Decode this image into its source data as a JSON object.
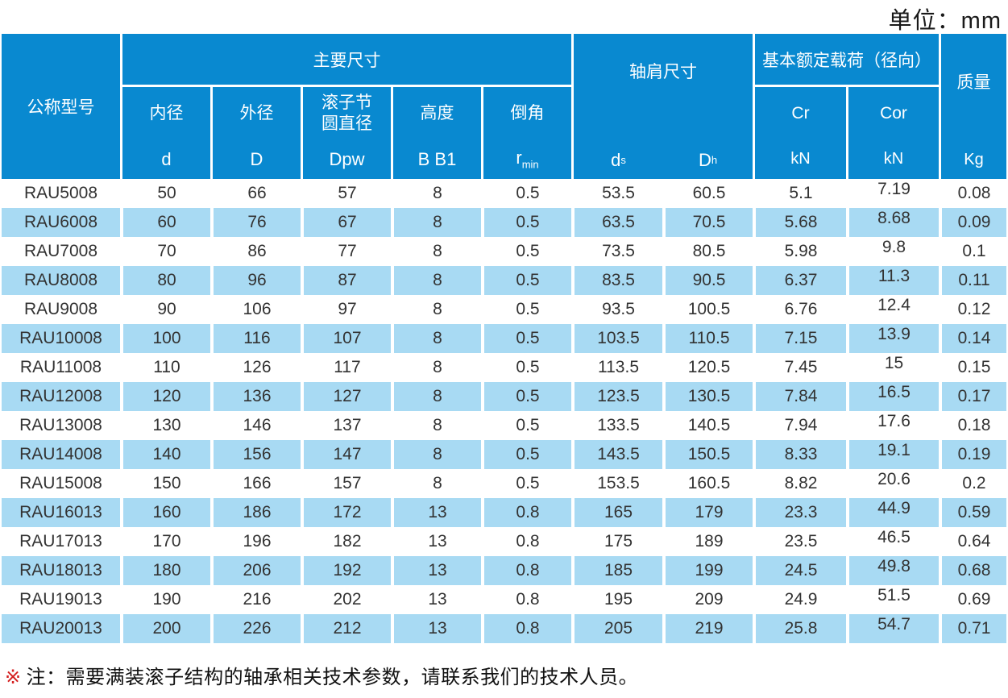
{
  "unit_label": "单位：mm",
  "colors": {
    "header_blue": "#0989d0",
    "row_light_blue": "#a8daf3",
    "body_text": "#333333",
    "note_marker_red": "#d42020"
  },
  "header": {
    "model": "公称型号",
    "main_dims": "主要尺寸",
    "shoulder": "轴肩尺寸",
    "load": "基本额定载荷（径向）",
    "mass": "质量",
    "sub": {
      "bore": {
        "label": "内径",
        "sym": "d"
      },
      "outer": {
        "label": "外径",
        "sym": "D"
      },
      "pitch": {
        "label1": "滚子节",
        "label2": "圆直径",
        "sym": "Dpw"
      },
      "height": {
        "label": "高度",
        "sym": "B B1"
      },
      "chamfer": {
        "label": "倒角",
        "sym": "r",
        "sym_sub": "min"
      },
      "ds": {
        "sym": "d",
        "sub": "s"
      },
      "dh": {
        "sym": "D",
        "sub": "h"
      },
      "cr": {
        "label": "Cr",
        "unit": "kN"
      },
      "cor": {
        "label": "Cor",
        "unit": "kN"
      },
      "kg": "Kg"
    }
  },
  "table": {
    "columns_order": [
      "model",
      "d",
      "D",
      "Dpw",
      "B",
      "r",
      "ds",
      "Dh",
      "Cr",
      "Cor",
      "Kg"
    ],
    "rows": [
      {
        "model": "RAU5008",
        "d": "50",
        "D": "66",
        "Dpw": "57",
        "B": "8",
        "r": "0.5",
        "ds": "53.5",
        "Dh": "60.5",
        "Cr": "5.1",
        "Cor": "7.19",
        "Kg": "0.08"
      },
      {
        "model": "RAU6008",
        "d": "60",
        "D": "76",
        "Dpw": "67",
        "B": "8",
        "r": "0.5",
        "ds": "63.5",
        "Dh": "70.5",
        "Cr": "5.68",
        "Cor": "8.68",
        "Kg": "0.09"
      },
      {
        "model": "RAU7008",
        "d": "70",
        "D": "86",
        "Dpw": "77",
        "B": "8",
        "r": "0.5",
        "ds": "73.5",
        "Dh": "80.5",
        "Cr": "5.98",
        "Cor": "9.8",
        "Kg": "0.1"
      },
      {
        "model": "RAU8008",
        "d": "80",
        "D": "96",
        "Dpw": "87",
        "B": "8",
        "r": "0.5",
        "ds": "83.5",
        "Dh": "90.5",
        "Cr": "6.37",
        "Cor": "11.3",
        "Kg": "0.11"
      },
      {
        "model": "RAU9008",
        "d": "90",
        "D": "106",
        "Dpw": "97",
        "B": "8",
        "r": "0.5",
        "ds": "93.5",
        "Dh": "100.5",
        "Cr": "6.76",
        "Cor": "12.4",
        "Kg": "0.12"
      },
      {
        "model": "RAU10008",
        "d": "100",
        "D": "116",
        "Dpw": "107",
        "B": "8",
        "r": "0.5",
        "ds": "103.5",
        "Dh": "110.5",
        "Cr": "7.15",
        "Cor": "13.9",
        "Kg": "0.14"
      },
      {
        "model": "RAU11008",
        "d": "110",
        "D": "126",
        "Dpw": "117",
        "B": "8",
        "r": "0.5",
        "ds": "113.5",
        "Dh": "120.5",
        "Cr": "7.45",
        "Cor": "15",
        "Kg": "0.15"
      },
      {
        "model": "RAU12008",
        "d": "120",
        "D": "136",
        "Dpw": "127",
        "B": "8",
        "r": "0.5",
        "ds": "123.5",
        "Dh": "130.5",
        "Cr": "7.84",
        "Cor": "16.5",
        "Kg": "0.17"
      },
      {
        "model": "RAU13008",
        "d": "130",
        "D": "146",
        "Dpw": "137",
        "B": "8",
        "r": "0.5",
        "ds": "133.5",
        "Dh": "140.5",
        "Cr": "7.94",
        "Cor": "17.6",
        "Kg": "0.18"
      },
      {
        "model": "RAU14008",
        "d": "140",
        "D": "156",
        "Dpw": "147",
        "B": "8",
        "r": "0.5",
        "ds": "143.5",
        "Dh": "150.5",
        "Cr": "8.33",
        "Cor": "19.1",
        "Kg": "0.19"
      },
      {
        "model": "RAU15008",
        "d": "150",
        "D": "166",
        "Dpw": "157",
        "B": "8",
        "r": "0.5",
        "ds": "153.5",
        "Dh": "160.5",
        "Cr": "8.82",
        "Cor": "20.6",
        "Kg": "0.2"
      },
      {
        "model": "RAU16013",
        "d": "160",
        "D": "186",
        "Dpw": "172",
        "B": "13",
        "r": "0.8",
        "ds": "165",
        "Dh": "179",
        "Cr": "23.3",
        "Cor": "44.9",
        "Kg": "0.59"
      },
      {
        "model": "RAU17013",
        "d": "170",
        "D": "196",
        "Dpw": "182",
        "B": "13",
        "r": "0.8",
        "ds": "175",
        "Dh": "189",
        "Cr": "23.5",
        "Cor": "46.5",
        "Kg": "0.64"
      },
      {
        "model": "RAU18013",
        "d": "180",
        "D": "206",
        "Dpw": "192",
        "B": "13",
        "r": "0.8",
        "ds": "185",
        "Dh": "199",
        "Cr": "24.5",
        "Cor": "49.8",
        "Kg": "0.68"
      },
      {
        "model": "RAU19013",
        "d": "190",
        "D": "216",
        "Dpw": "202",
        "B": "13",
        "r": "0.8",
        "ds": "195",
        "Dh": "209",
        "Cr": "24.9",
        "Cor": "51.5",
        "Kg": "0.69"
      },
      {
        "model": "RAU20013",
        "d": "200",
        "D": "226",
        "Dpw": "212",
        "B": "13",
        "r": "0.8",
        "ds": "205",
        "Dh": "219",
        "Cr": "25.8",
        "Cor": "54.7",
        "Kg": "0.71"
      }
    ]
  },
  "note": {
    "marker": "※",
    "text": "注：需要满装滚子结构的轴承相关技术参数，请联系我们的技术人员。"
  }
}
